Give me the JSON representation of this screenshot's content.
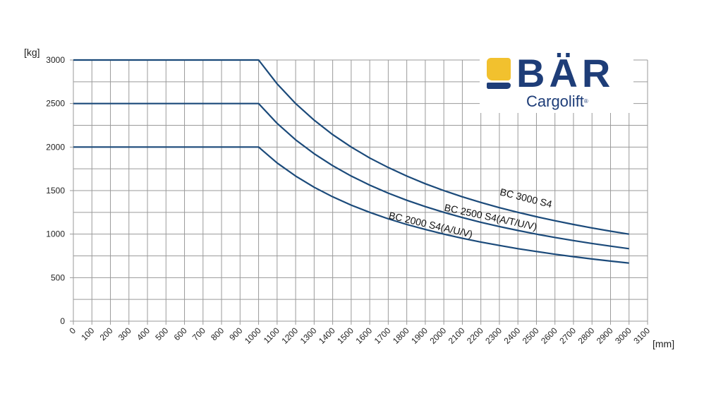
{
  "logo": {
    "brand": "BÄR",
    "subtitle": "Cargolift",
    "registered": "®",
    "colors": {
      "yellow": "#f2c12e",
      "blue": "#1e3d78"
    }
  },
  "axes": {
    "y_unit": "[kg]",
    "x_unit": "[mm]"
  },
  "style": {
    "line_color": "#1b4a7a",
    "grid_color": "#9a9a9a"
  },
  "chart_data": {
    "type": "line",
    "title": "",
    "xlabel": "[mm]",
    "ylabel": "[kg]",
    "xlim": [
      0,
      3100
    ],
    "ylim": [
      0,
      3000
    ],
    "grid": true,
    "x_ticks": [
      "0",
      "100",
      "200",
      "300",
      "400",
      "500",
      "600",
      "700",
      "800",
      "900",
      "1000",
      "1100",
      "1200",
      "1300",
      "1400",
      "1500",
      "1600",
      "1700",
      "1800",
      "1900",
      "2000",
      "2100",
      "2200",
      "2300",
      "2400",
      "2500",
      "2600",
      "2700",
      "2800",
      "2900",
      "3000",
      "3100"
    ],
    "y_ticks": [
      "0",
      "500",
      "1000",
      "1500",
      "2000",
      "2500",
      "3000"
    ],
    "x": [
      0,
      1000,
      1100,
      1200,
      1300,
      1400,
      1500,
      1600,
      1700,
      1800,
      1900,
      2000,
      2100,
      2200,
      2300,
      2400,
      2500,
      2600,
      2700,
      2800,
      2900,
      3000
    ],
    "series": [
      {
        "name": "BC 3000 S4",
        "values": [
          3000,
          3000,
          2727,
          2500,
          2308,
          2143,
          2000,
          1875,
          1765,
          1667,
          1579,
          1500,
          1429,
          1364,
          1304,
          1250,
          1200,
          1154,
          1111,
          1071,
          1034,
          1000
        ]
      },
      {
        "name": "BC 2500 S4(A/T/U/V)",
        "values": [
          2500,
          2500,
          2273,
          2083,
          1923,
          1786,
          1667,
          1563,
          1471,
          1389,
          1316,
          1250,
          1190,
          1136,
          1087,
          1042,
          1000,
          962,
          926,
          893,
          862,
          833
        ]
      },
      {
        "name": "BC 2000 S4(A/U/V)",
        "values": [
          2000,
          2000,
          1818,
          1667,
          1538,
          1429,
          1333,
          1250,
          1176,
          1111,
          1053,
          1000,
          952,
          909,
          870,
          833,
          800,
          769,
          741,
          714,
          690,
          667
        ]
      }
    ],
    "annotations": [
      {
        "text": "BC 3000 S4",
        "x": 2300,
        "y": 1450
      },
      {
        "text": "BC 2500 S4(A/T/U/V)",
        "x": 2000,
        "y": 1270
      },
      {
        "text": "BC 2000 S4(A/U/V)",
        "x": 1700,
        "y": 1180
      }
    ]
  }
}
